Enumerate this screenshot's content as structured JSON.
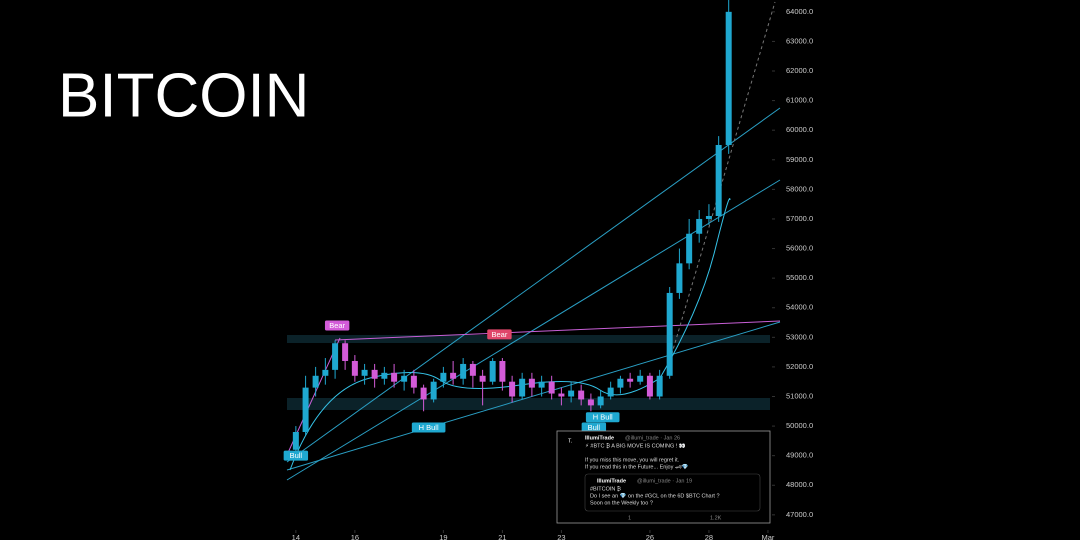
{
  "chart_data": {
    "type": "candlestick",
    "title": "BITCOIN",
    "xlim": [
      13.7,
      30.07
    ],
    "ylim": [
      46150,
      64400
    ],
    "xticks": [
      14,
      16,
      19,
      21,
      23,
      26,
      28,
      {
        "value": 30,
        "label": "Mar"
      }
    ],
    "yticks": [
      {
        "value": 47000,
        "label": "47000.0"
      },
      {
        "value": 48000,
        "label": "48000.0"
      },
      {
        "value": 49000,
        "label": "49000.0"
      },
      {
        "value": 50000,
        "label": "50000.0"
      },
      {
        "value": 51000,
        "label": "51000.0"
      },
      {
        "value": 52000,
        "label": "52000.0"
      },
      {
        "value": 53000,
        "label": "53000.0"
      },
      {
        "value": 54000,
        "label": "54000.0"
      },
      {
        "value": 55000,
        "label": "55000.0"
      },
      {
        "value": 56000,
        "label": "56000.0"
      },
      {
        "value": 57000,
        "label": "57000.0"
      },
      {
        "value": 58000,
        "label": "58000.0"
      },
      {
        "value": 59000,
        "label": "59000.0"
      },
      {
        "value": 60000,
        "label": "60000.0"
      },
      {
        "value": 61000,
        "label": "61000.0"
      },
      {
        "value": 62000,
        "label": "62000.0"
      },
      {
        "value": 63000,
        "label": "63000.0"
      },
      {
        "value": 64000,
        "label": "64000.0"
      }
    ],
    "up_color": "#1fa8d0",
    "down_color": "#d35bd8",
    "x": [
      14.0,
      14.33,
      14.67,
      15.0,
      15.33,
      15.67,
      16.0,
      16.33,
      16.67,
      17.0,
      17.33,
      17.67,
      18.0,
      18.33,
      18.67,
      19.0,
      19.33,
      19.67,
      20.0,
      20.33,
      20.67,
      21.0,
      21.33,
      21.67,
      22.0,
      22.33,
      22.67,
      23.0,
      23.33,
      23.67,
      24.0,
      24.33,
      24.67,
      25.0,
      25.33,
      25.67,
      26.0,
      26.33,
      26.67,
      27.0,
      27.33,
      27.67,
      28.0,
      28.33,
      28.67
    ],
    "open": [
      49200,
      49800,
      51300,
      51700,
      51900,
      52800,
      52200,
      51700,
      51900,
      51600,
      51800,
      51500,
      51700,
      51300,
      50900,
      51500,
      51800,
      51600,
      52100,
      51700,
      51500,
      52200,
      51500,
      51000,
      51600,
      51300,
      51500,
      51100,
      51000,
      51200,
      50900,
      50700,
      51000,
      51300,
      51600,
      51500,
      51700,
      51000,
      51700,
      54500,
      55500,
      56500,
      57000,
      57100,
      59500
    ],
    "high": [
      50000,
      51700,
      52000,
      52300,
      52900,
      52900,
      52400,
      52100,
      52100,
      52000,
      52100,
      51900,
      51900,
      51400,
      51600,
      52000,
      52200,
      52300,
      52200,
      51900,
      52300,
      52300,
      51700,
      51800,
      51800,
      51700,
      51700,
      51300,
      51500,
      51400,
      51100,
      51200,
      51500,
      51700,
      51800,
      51900,
      51800,
      51900,
      54700,
      56000,
      57000,
      57300,
      57500,
      59800,
      64400
    ],
    "low": [
      48900,
      49700,
      51000,
      51400,
      51600,
      51900,
      51500,
      51400,
      51300,
      51400,
      51300,
      51200,
      51100,
      50500,
      50800,
      51300,
      51400,
      51400,
      51300,
      50700,
      51400,
      51200,
      50800,
      50900,
      51000,
      51000,
      50900,
      50700,
      50800,
      50700,
      50500,
      50600,
      50900,
      51100,
      51300,
      51400,
      50900,
      50900,
      51600,
      54300,
      55300,
      56200,
      56800,
      56900,
      59200
    ],
    "close": [
      49800,
      51300,
      51700,
      51900,
      52800,
      52200,
      51700,
      51900,
      51600,
      51800,
      51500,
      51700,
      51300,
      50900,
      51500,
      51800,
      51600,
      52100,
      51700,
      51500,
      52200,
      51500,
      51000,
      51600,
      51300,
      51500,
      51100,
      51000,
      51200,
      50900,
      50700,
      51000,
      51300,
      51600,
      51500,
      51700,
      51000,
      51700,
      54500,
      55500,
      56500,
      57000,
      57100,
      59500,
      64000
    ],
    "annotations": [
      {
        "label": "Bear",
        "x": 15.4,
        "y": 53400,
        "color": "#d35bd8"
      },
      {
        "label": "Bear",
        "x": 20.9,
        "y": 53100,
        "color": "#e0466a"
      },
      {
        "label": "H Bull",
        "x": 18.5,
        "y": 49950,
        "color": "#1fa8d0"
      },
      {
        "label": "H Bull",
        "x": 24.4,
        "y": 50300,
        "color": "#1fa8d0"
      },
      {
        "label": "Bull",
        "x": 24.1,
        "y": 49950,
        "color": "#1fa8d0"
      },
      {
        "label": "Bull",
        "x": 14.0,
        "y": 49000,
        "color": "#1fa8d0"
      }
    ]
  },
  "tweet": {
    "name": "IllumiTrade",
    "handle": "@illumi_trade · Jan 26",
    "lines": [
      "⚡ #BTC ₿ A BIG MOVE IS COMING ! 👀",
      "If you miss this move, you will regret it.",
      "If you read this in the Future... Enjoy 🏎💎"
    ],
    "quote_name": "IllumiTrade",
    "quote_handle": "@illumi_trade · Jan 19",
    "quote_lines": [
      "#BITCOIN ₿",
      "Do I see an 💎 on the #GCL on the 6D $BTC Chart ?",
      "Soon on the Weekly too ?"
    ],
    "retweets": "1",
    "views": "1.2K"
  }
}
